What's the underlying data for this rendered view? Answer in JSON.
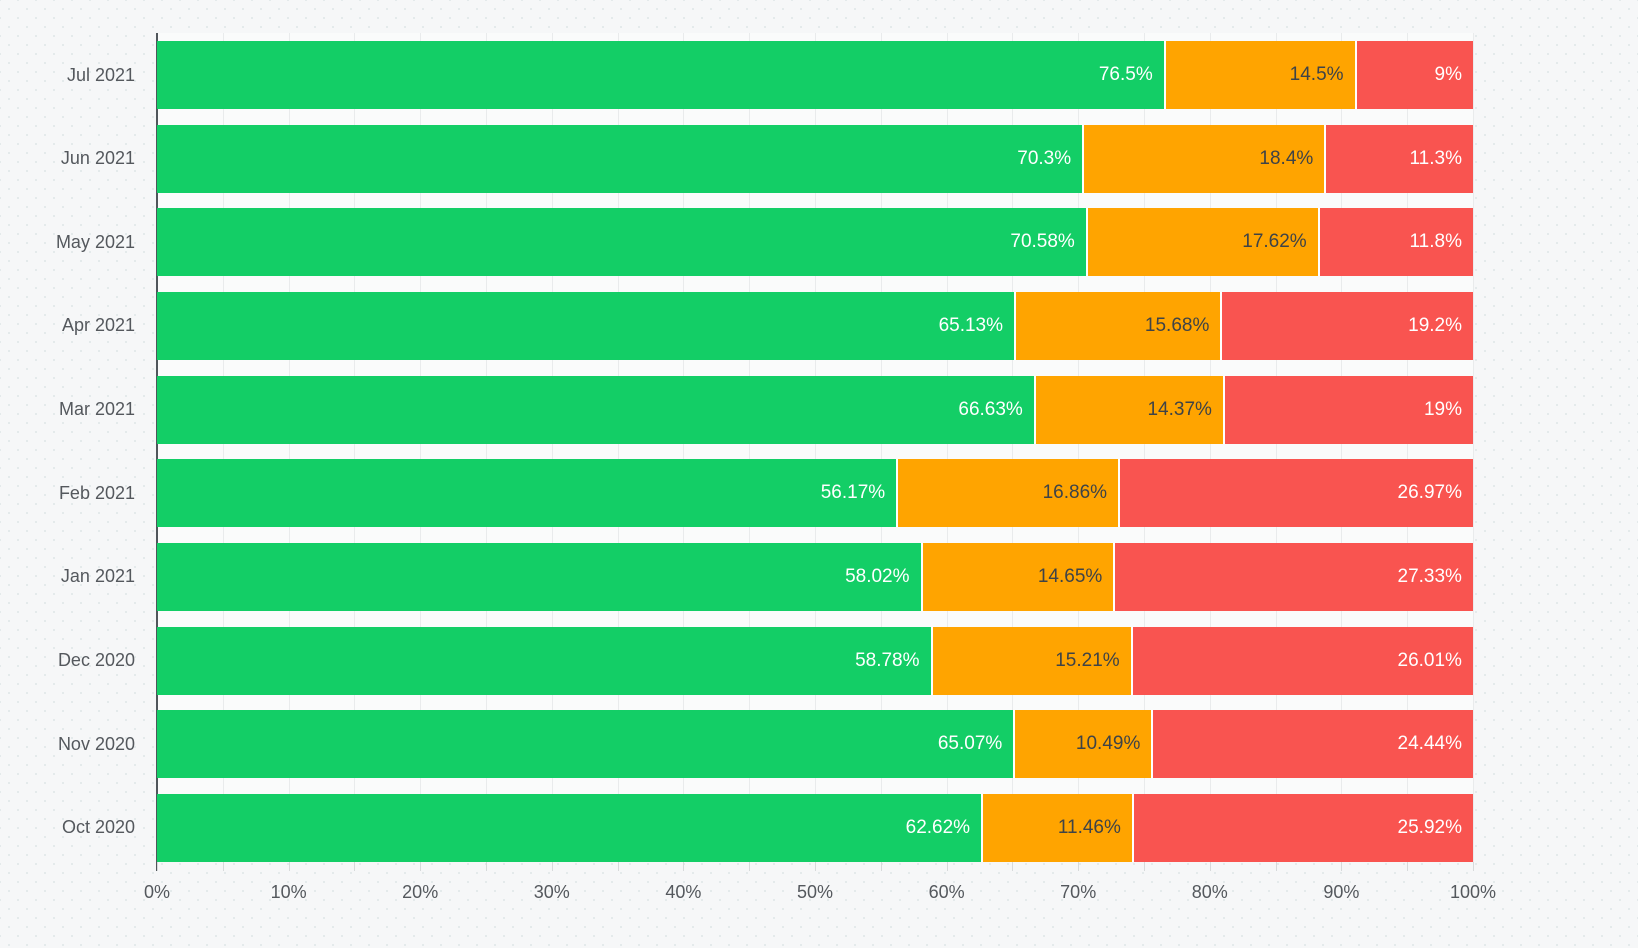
{
  "chart_data": {
    "type": "bar",
    "orientation": "horizontal",
    "stacked": true,
    "unit": "%",
    "grid": true,
    "legend_position": "none",
    "categories": [
      "Jul 2021",
      "Jun 2021",
      "May 2021",
      "Apr 2021",
      "Mar 2021",
      "Feb 2021",
      "Jan 2021",
      "Dec 2020",
      "Nov 2020",
      "Oct 2020"
    ],
    "series": [
      {
        "name": "green",
        "color": "#13ce66",
        "label_color": "#ffffff",
        "values": [
          76.5,
          70.3,
          70.58,
          65.13,
          66.63,
          56.17,
          58.02,
          58.78,
          65.07,
          62.62
        ],
        "labels": [
          "76.5%",
          "70.3%",
          "70.58%",
          "65.13%",
          "66.63%",
          "56.17%",
          "58.02%",
          "58.78%",
          "65.07%",
          "62.62%"
        ]
      },
      {
        "name": "orange",
        "color": "#ffa400",
        "label_color": "#3e4347",
        "values": [
          14.5,
          18.4,
          17.62,
          15.68,
          14.37,
          16.86,
          14.65,
          15.21,
          10.49,
          11.46
        ],
        "labels": [
          "14.5%",
          "18.4%",
          "17.62%",
          "15.68%",
          "14.37%",
          "16.86%",
          "14.65%",
          "15.21%",
          "10.49%",
          "11.46%"
        ]
      },
      {
        "name": "red",
        "color": "#f95450",
        "label_color": "#ffffff",
        "values": [
          9,
          11.3,
          11.8,
          19.2,
          19,
          26.97,
          27.33,
          26.01,
          24.44,
          25.92
        ],
        "labels": [
          "9%",
          "11.3%",
          "11.8%",
          "19.2%",
          "19%",
          "26.97%",
          "27.33%",
          "26.01%",
          "24.44%",
          "25.92%"
        ]
      }
    ],
    "x_axis": {
      "min": 0,
      "max": 100,
      "tick_labels": [
        "0%",
        "10%",
        "20%",
        "30%",
        "40%",
        "50%",
        "60%",
        "70%",
        "80%",
        "90%",
        "100%"
      ],
      "major_tick_step": 10,
      "minor_tick_step": 5
    }
  }
}
